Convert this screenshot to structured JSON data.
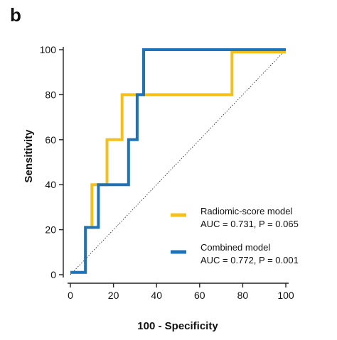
{
  "panel_label": "b",
  "chart_data": {
    "type": "line",
    "xlabel": "100 - Specificity",
    "ylabel": "Sensitivity",
    "xlim": [
      0,
      100
    ],
    "ylim": [
      0,
      100
    ],
    "xticks": [
      "0",
      "20",
      "40",
      "60",
      "80",
      "100"
    ],
    "yticks": [
      "0",
      "20",
      "40",
      "60",
      "80",
      "100"
    ],
    "grid": false,
    "legend_position": "bottom-right",
    "reference_line": {
      "style": "dotted diagonal",
      "x": [
        0,
        100
      ],
      "y": [
        0,
        100
      ]
    },
    "series": [
      {
        "name": "Radiomic-score model",
        "stat_text": "AUC = 0.731, P = 0.065",
        "color": "#f5c01a",
        "x": [
          0,
          7,
          7,
          10,
          10,
          17,
          17,
          24,
          24,
          75,
          75,
          100
        ],
        "y": [
          1,
          1,
          21,
          21,
          40,
          40,
          60,
          60,
          80,
          80,
          99,
          99
        ]
      },
      {
        "name": "Combined model",
        "stat_text": "AUC = 0.772, P = 0.001",
        "color": "#1e73b8",
        "x": [
          0,
          7,
          7,
          13,
          13,
          27,
          27,
          31,
          31,
          34,
          34,
          100
        ],
        "y": [
          1,
          1,
          21,
          21,
          40,
          40,
          60,
          60,
          80,
          80,
          100,
          100
        ]
      }
    ]
  }
}
